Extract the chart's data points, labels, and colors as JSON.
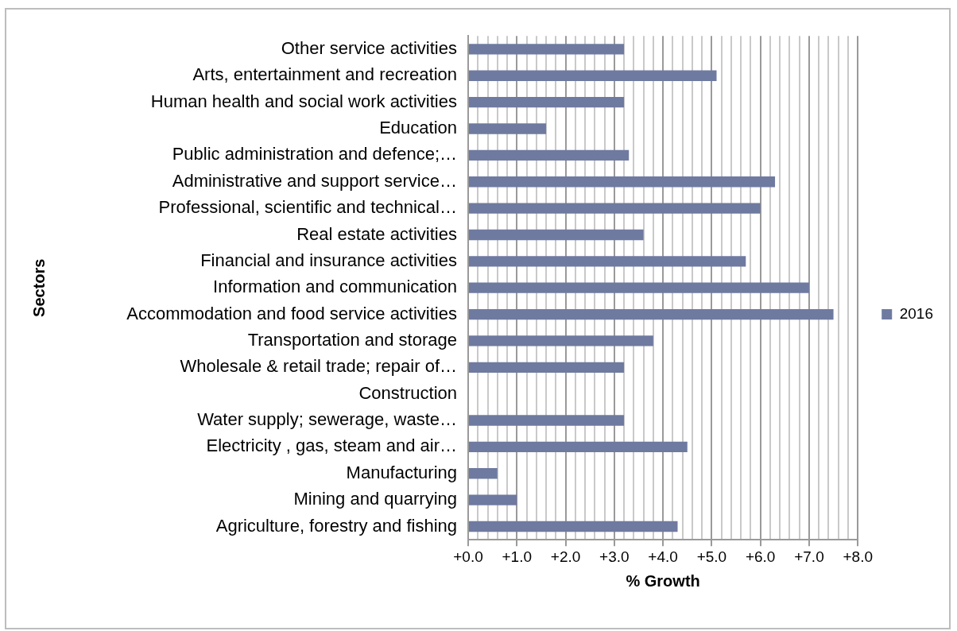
{
  "chart_data": {
    "type": "bar",
    "orientation": "horizontal",
    "xlabel": "% Growth",
    "ylabel": "Sectors",
    "categories": [
      "Other service activities",
      "Arts, entertainment and recreation",
      "Human health and social work activities",
      "Education",
      "Public administration and defence;…",
      "Administrative and support service…",
      "Professional, scientific and technical…",
      "Real estate activities",
      "Financial and insurance activities",
      "Information and communication",
      "Accommodation and food service activities",
      "Transportation and storage",
      "Wholesale & retail trade; repair of…",
      "Construction",
      "Water supply; sewerage, waste…",
      "Electricity , gas, steam and air…",
      "Manufacturing",
      "Mining and quarrying",
      "Agriculture, forestry and fishing"
    ],
    "series": [
      {
        "name": "2016",
        "color": "#6f7aa0",
        "values": [
          3.2,
          5.1,
          3.2,
          1.6,
          3.3,
          6.3,
          6.0,
          3.6,
          5.7,
          7.0,
          7.5,
          3.8,
          3.2,
          0,
          3.2,
          4.5,
          0.6,
          1.0,
          4.3
        ]
      }
    ],
    "xlim": [
      0,
      8
    ],
    "xticks": [
      {
        "value": 0,
        "label": "+0.0"
      },
      {
        "value": 0.2,
        "label": null
      },
      {
        "value": 0.4,
        "label": null
      },
      {
        "value": 0.6,
        "label": null
      },
      {
        "value": 0.8,
        "label": null
      },
      {
        "value": 1,
        "label": "+1.0"
      },
      {
        "value": 1.2,
        "label": null
      },
      {
        "value": 1.4,
        "label": null
      },
      {
        "value": 1.6,
        "label": null
      },
      {
        "value": 1.8,
        "label": null
      },
      {
        "value": 2,
        "label": "+2.0"
      },
      {
        "value": 2.2,
        "label": null
      },
      {
        "value": 2.4,
        "label": null
      },
      {
        "value": 2.6,
        "label": null
      },
      {
        "value": 2.8,
        "label": null
      },
      {
        "value": 3,
        "label": "+3.0"
      },
      {
        "value": 3.2,
        "label": null
      },
      {
        "value": 3.4,
        "label": null
      },
      {
        "value": 3.6,
        "label": null
      },
      {
        "value": 3.8,
        "label": null
      },
      {
        "value": 4,
        "label": "+4.0"
      },
      {
        "value": 4.2,
        "label": null
      },
      {
        "value": 4.4,
        "label": null
      },
      {
        "value": 4.6,
        "label": null
      },
      {
        "value": 4.8,
        "label": null
      },
      {
        "value": 5,
        "label": "+5.0"
      },
      {
        "value": 5.2,
        "label": null
      },
      {
        "value": 5.4,
        "label": null
      },
      {
        "value": 5.6,
        "label": null
      },
      {
        "value": 5.8,
        "label": null
      },
      {
        "value": 6,
        "label": "+6.0"
      },
      {
        "value": 6.2,
        "label": null
      },
      {
        "value": 6.4,
        "label": null
      },
      {
        "value": 6.6,
        "label": null
      },
      {
        "value": 6.8,
        "label": null
      },
      {
        "value": 7,
        "label": "+7.0"
      },
      {
        "value": 7.2,
        "label": null
      },
      {
        "value": 7.4,
        "label": null
      },
      {
        "value": 7.6,
        "label": null
      },
      {
        "value": 7.8,
        "label": null
      },
      {
        "value": 8,
        "label": "+8.0"
      }
    ],
    "grid": "x",
    "legend": "right"
  }
}
